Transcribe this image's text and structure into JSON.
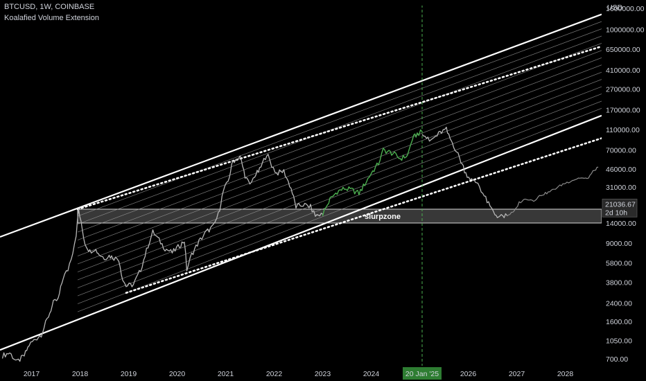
{
  "header": {
    "symbol_line": "BTCUSD, 1W, COINBASE",
    "indicator_line": "Koalafied Volume Extension"
  },
  "colors": {
    "background": "#000000",
    "price_history": "#b7b7b7",
    "price_highlight": "#4caf50",
    "price_projection": "#8c8c8c",
    "channel": "#ffffff",
    "vertical_marker": "#4caf50"
  },
  "chart_data": {
    "type": "line",
    "symbol": "BTCUSD",
    "timeframe": "1W",
    "exchange": "COINBASE",
    "currency_label": "USD",
    "y_scale": "log",
    "ylim": [
      600,
      1700000
    ],
    "xlim": [
      2016.35,
      2028.75
    ],
    "y_ticks": [
      "1600000.00",
      "1000000.00",
      "650000.00",
      "410000.00",
      "270000.00",
      "170000.00",
      "110000.00",
      "70000.00",
      "46000.00",
      "31000.00",
      "21036.67",
      "14000.00",
      "9000.00",
      "5800.00",
      "3800.00",
      "2400.00",
      "1600.00",
      "1050.00",
      "700.00"
    ],
    "x_ticks": [
      "2017",
      "2018",
      "2019",
      "2020",
      "2021",
      "2022",
      "2023",
      "2024",
      "2025",
      "2026",
      "2027",
      "2028"
    ],
    "current_price": {
      "value": 21036.67,
      "label": "21036.67",
      "countdown": "2d 10h"
    },
    "vertical_marker": {
      "x": 2025.05,
      "label": "20 Jan '25"
    },
    "zone": {
      "label": "slurpzone",
      "ylow": 14000,
      "yhigh": 19000,
      "x_start": 2017.95,
      "x_end": 2028.75
    },
    "channel": {
      "upper_solid": [
        [
          2016.35,
          10300
        ],
        [
          2028.75,
          1400000
        ]
      ],
      "upper_dotted": [
        [
          2017.95,
          19000
        ],
        [
          2028.75,
          690000
        ]
      ],
      "lower_solid": [
        [
          2016.35,
          850
        ],
        [
          2028.75,
          150000
        ]
      ],
      "lower_dotted": [
        [
          2018.95,
          3000
        ],
        [
          2028.75,
          91000
        ]
      ]
    },
    "series": [
      {
        "style": "history",
        "points": [
          [
            2016.4,
            750
          ],
          [
            2016.55,
            800
          ],
          [
            2016.7,
            650
          ],
          [
            2016.85,
            750
          ],
          [
            2016.95,
            950
          ],
          [
            2017.05,
            1050
          ],
          [
            2017.2,
            1200
          ],
          [
            2017.35,
            1800
          ],
          [
            2017.45,
            2400
          ],
          [
            2017.55,
            2600
          ],
          [
            2017.65,
            4200
          ],
          [
            2017.75,
            5000
          ],
          [
            2017.85,
            7500
          ],
          [
            2017.92,
            11000
          ],
          [
            2017.97,
            19000
          ],
          [
            2018.02,
            14000
          ],
          [
            2018.1,
            9000
          ],
          [
            2018.2,
            7500
          ],
          [
            2018.3,
            8000
          ],
          [
            2018.4,
            7000
          ],
          [
            2018.5,
            6500
          ],
          [
            2018.6,
            6800
          ],
          [
            2018.7,
            6500
          ],
          [
            2018.8,
            6300
          ],
          [
            2018.88,
            4000
          ],
          [
            2018.95,
            3500
          ],
          [
            2019.1,
            3600
          ],
          [
            2019.25,
            5000
          ],
          [
            2019.4,
            8500
          ],
          [
            2019.5,
            11500
          ],
          [
            2019.6,
            10000
          ],
          [
            2019.75,
            8000
          ],
          [
            2019.9,
            7300
          ],
          [
            2020.05,
            8500
          ],
          [
            2020.15,
            9500
          ],
          [
            2020.2,
            5000
          ],
          [
            2020.3,
            7000
          ],
          [
            2020.45,
            9300
          ],
          [
            2020.6,
            11500
          ],
          [
            2020.75,
            13000
          ],
          [
            2020.85,
            17000
          ],
          [
            2020.95,
            28000
          ],
          [
            2021.05,
            35000
          ],
          [
            2021.15,
            55000
          ],
          [
            2021.3,
            60000
          ],
          [
            2021.4,
            40000
          ],
          [
            2021.5,
            32000
          ],
          [
            2021.6,
            40000
          ],
          [
            2021.7,
            45000
          ],
          [
            2021.85,
            65000
          ],
          [
            2021.95,
            50000
          ],
          [
            2022.05,
            42000
          ],
          [
            2022.2,
            44000
          ],
          [
            2022.35,
            30000
          ],
          [
            2022.45,
            20000
          ],
          [
            2022.6,
            21000
          ],
          [
            2022.75,
            20000
          ],
          [
            2022.85,
            16500
          ],
          [
            2023.0,
            17000
          ]
        ]
      },
      {
        "style": "highlight",
        "points": [
          [
            2023.0,
            17000
          ],
          [
            2023.1,
            21000
          ],
          [
            2023.15,
            23500
          ],
          [
            2023.3,
            28000
          ],
          [
            2023.45,
            30000
          ],
          [
            2023.6,
            29000
          ],
          [
            2023.75,
            27000
          ],
          [
            2023.9,
            35000
          ],
          [
            2024.0,
            42000
          ],
          [
            2024.15,
            52000
          ],
          [
            2024.25,
            70000
          ],
          [
            2024.45,
            65000
          ],
          [
            2024.6,
            58000
          ],
          [
            2024.75,
            62000
          ],
          [
            2024.85,
            90000
          ],
          [
            2024.95,
            100000
          ],
          [
            2025.05,
            105000
          ]
        ]
      },
      {
        "style": "history",
        "points": [
          [
            2025.05,
            105000
          ],
          [
            2025.2,
            85000
          ],
          [
            2025.3,
            92000
          ],
          [
            2025.45,
            105000
          ],
          [
            2025.55,
            110000
          ],
          [
            2025.6,
            95000
          ],
          [
            2025.7,
            78000
          ],
          [
            2025.85,
            55000
          ],
          [
            2025.95,
            42000
          ],
          [
            2026.1,
            35000
          ],
          [
            2026.2,
            34000
          ],
          [
            2026.3,
            27000
          ],
          [
            2026.45,
            20000
          ],
          [
            2026.55,
            17000
          ],
          [
            2026.65,
            16000
          ],
          [
            2026.8,
            16500
          ]
        ]
      },
      {
        "style": "projection",
        "points": [
          [
            2026.8,
            16500
          ],
          [
            2026.95,
            18000
          ],
          [
            2027.05,
            22000
          ],
          [
            2027.2,
            24000
          ],
          [
            2027.35,
            23000
          ],
          [
            2027.5,
            26000
          ],
          [
            2027.65,
            27500
          ],
          [
            2027.8,
            30000
          ],
          [
            2027.95,
            33000
          ],
          [
            2028.15,
            36000
          ],
          [
            2028.3,
            38000
          ],
          [
            2028.45,
            37000
          ],
          [
            2028.6,
            45000
          ],
          [
            2028.68,
            48000
          ]
        ]
      }
    ]
  }
}
